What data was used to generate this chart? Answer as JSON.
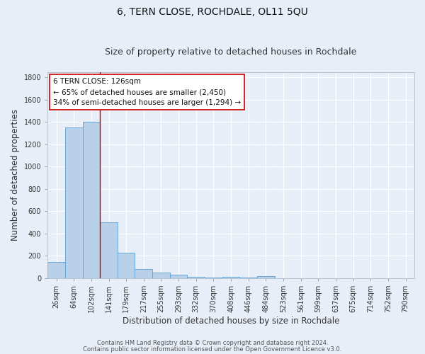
{
  "title": "6, TERN CLOSE, ROCHDALE, OL11 5QU",
  "subtitle": "Size of property relative to detached houses in Rochdale",
  "xlabel": "Distribution of detached houses by size in Rochdale",
  "ylabel": "Number of detached properties",
  "categories": [
    "26sqm",
    "64sqm",
    "102sqm",
    "141sqm",
    "179sqm",
    "217sqm",
    "255sqm",
    "293sqm",
    "332sqm",
    "370sqm",
    "408sqm",
    "446sqm",
    "484sqm",
    "523sqm",
    "561sqm",
    "599sqm",
    "637sqm",
    "675sqm",
    "714sqm",
    "752sqm",
    "790sqm"
  ],
  "values": [
    145,
    1350,
    1400,
    500,
    225,
    80,
    50,
    30,
    15,
    5,
    15,
    5,
    20,
    0,
    0,
    0,
    0,
    0,
    0,
    0,
    0
  ],
  "bar_color": "#b8d0e8",
  "bar_edge_color": "#5a9fd4",
  "background_color": "#e8eef8",
  "grid_color": "#ffffff",
  "vline_x": 2.5,
  "vline_color": "#cc0000",
  "annotation_text_line1": "6 TERN CLOSE: 126sqm",
  "annotation_text_line2": "← 65% of detached houses are smaller (2,450)",
  "annotation_text_line3": "34% of semi-detached houses are larger (1,294) →",
  "ylim": [
    0,
    1850
  ],
  "yticks": [
    0,
    200,
    400,
    600,
    800,
    1000,
    1200,
    1400,
    1600,
    1800
  ],
  "footer_line1": "Contains HM Land Registry data © Crown copyright and database right 2024.",
  "footer_line2": "Contains public sector information licensed under the Open Government Licence v3.0.",
  "title_fontsize": 10,
  "subtitle_fontsize": 9,
  "axis_label_fontsize": 8.5,
  "tick_fontsize": 7,
  "annotation_fontsize": 7.5,
  "footer_fontsize": 6
}
